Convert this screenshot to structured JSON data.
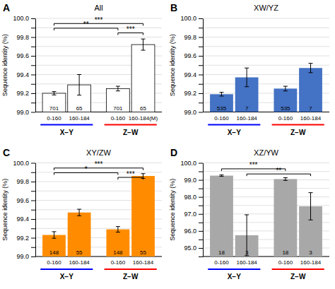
{
  "chart_data": [
    {
      "type": "bar",
      "title": "A",
      "subtitle": "All",
      "ylabel": "Sequence identity (%)",
      "categories": [
        "0-160",
        "160-184",
        "0-160",
        "160-184(M)"
      ],
      "values": [
        99.2,
        99.29,
        99.25,
        99.72
      ],
      "errors": [
        0.018,
        0.11,
        0.025,
        0.06
      ],
      "n": [
        701,
        65,
        701,
        65
      ],
      "color": "white",
      "groups": [
        {
          "name": "X−Y",
          "color": "blue"
        },
        {
          "name": "Z−W",
          "color": "red"
        }
      ],
      "significance": [
        {
          "between": [
            0,
            3
          ],
          "y": 99.945,
          "text": "***"
        },
        {
          "between": [
            0,
            2
          ],
          "y": 99.895,
          "text": "**"
        },
        {
          "between": [
            2,
            3
          ],
          "y": 99.845,
          "text": "***"
        }
      ],
      "ylim": [
        99.0,
        100.0
      ],
      "yticks": [
        {
          "value": 99.0,
          "label": "99.0"
        },
        {
          "value": 99.1,
          "label": null
        },
        {
          "value": 99.2,
          "label": "99.2"
        },
        {
          "value": 99.3,
          "label": null
        },
        {
          "value": 99.4,
          "label": "99.4"
        },
        {
          "value": 99.5,
          "label": null
        },
        {
          "value": 99.6,
          "label": "99.6"
        },
        {
          "value": 99.7,
          "label": null
        },
        {
          "value": 99.8,
          "label": "99.8"
        },
        {
          "value": 99.9,
          "label": null
        },
        {
          "value": 100.0,
          "label": "100.0"
        }
      ],
      "grid": true
    },
    {
      "type": "bar",
      "title": "B",
      "subtitle": "XW/YZ",
      "ylabel": "Sequence identity (%)",
      "categories": [
        "0-160",
        "160-184",
        "0-160",
        "160-184"
      ],
      "values": [
        99.19,
        99.37,
        99.25,
        99.47
      ],
      "errors": [
        0.02,
        0.1,
        0.025,
        0.05
      ],
      "n": [
        535,
        7,
        535,
        7
      ],
      "color": "#4472C4",
      "groups": [
        {
          "name": "X−Y",
          "color": "blue"
        },
        {
          "name": "Z−W",
          "color": "red"
        }
      ],
      "significance": [],
      "ylim": [
        99.0,
        100.0
      ],
      "yticks": [
        {
          "value": 99.0,
          "label": "99.0"
        },
        {
          "value": 99.1,
          "label": null
        },
        {
          "value": 99.2,
          "label": "99.2"
        },
        {
          "value": 99.3,
          "label": null
        },
        {
          "value": 99.4,
          "label": "99.4"
        },
        {
          "value": 99.5,
          "label": null
        },
        {
          "value": 99.6,
          "label": "99.6"
        },
        {
          "value": 99.7,
          "label": null
        },
        {
          "value": 99.8,
          "label": "99.8"
        },
        {
          "value": 99.9,
          "label": null
        },
        {
          "value": 100.0,
          "label": "100.0"
        }
      ],
      "grid": true
    },
    {
      "type": "bar",
      "title": "C",
      "subtitle": "XY/ZW",
      "ylabel": "Sequence identity (%)",
      "categories": [
        "0-160",
        "160-184",
        "0-160",
        "160-184"
      ],
      "values": [
        99.23,
        99.47,
        99.29,
        99.86
      ],
      "errors": [
        0.035,
        0.035,
        0.03,
        0.025
      ],
      "n": [
        148,
        55,
        148,
        55
      ],
      "color": "#FF8C00",
      "groups": [
        {
          "name": "X−Y",
          "color": "blue"
        },
        {
          "name": "Z−W",
          "color": "red"
        }
      ],
      "significance": [
        {
          "between": [
            0,
            3
          ],
          "y": 99.945,
          "text": "***"
        },
        {
          "between": [
            0,
            2
          ],
          "y": 99.895,
          "text": "*"
        },
        {
          "between": [
            2,
            3
          ],
          "y": 99.845,
          "text": "***"
        }
      ],
      "ylim": [
        99.0,
        100.0
      ],
      "yticks": [
        {
          "value": 99.0,
          "label": "99.0"
        },
        {
          "value": 99.1,
          "label": null
        },
        {
          "value": 99.2,
          "label": "99.2"
        },
        {
          "value": 99.3,
          "label": null
        },
        {
          "value": 99.4,
          "label": "99.4"
        },
        {
          "value": 99.5,
          "label": null
        },
        {
          "value": 99.6,
          "label": "99.6"
        },
        {
          "value": 99.7,
          "label": null
        },
        {
          "value": 99.8,
          "label": "99.8"
        },
        {
          "value": 99.9,
          "label": null
        },
        {
          "value": 100.0,
          "label": "100.0"
        }
      ],
      "grid": true
    },
    {
      "type": "bar",
      "title": "D",
      "subtitle": "XZ/YW",
      "ylabel": "Sequence identity (%)",
      "categories": [
        "0-160",
        "160-184",
        "0-160",
        "160-184"
      ],
      "values": [
        99.25,
        95.75,
        99.05,
        97.45
      ],
      "errors": [
        0.04,
        1.2,
        0.08,
        0.8
      ],
      "n": [
        18,
        3,
        18,
        3
      ],
      "color": "#A8A8A8",
      "groups": [
        {
          "name": "X−Y",
          "color": "blue"
        },
        {
          "name": "Z−W",
          "color": "red"
        }
      ],
      "significance": [
        {
          "between": [
            0,
            2
          ],
          "y": 99.65,
          "text": "***"
        },
        {
          "between": [
            1,
            3
          ],
          "y": 99.35,
          "text": "**"
        }
      ],
      "ylim": [
        94.5,
        100.0
      ],
      "yticks": [
        {
          "value": 94.5,
          "label": null
        },
        {
          "value": 95.0,
          "label": "95.0"
        },
        {
          "value": 95.5,
          "label": null
        },
        {
          "value": 96.0,
          "label": "96.0"
        },
        {
          "value": 96.5,
          "label": null
        },
        {
          "value": 97.0,
          "label": "97.0"
        },
        {
          "value": 97.5,
          "label": null
        },
        {
          "value": 98.0,
          "label": "98.0"
        },
        {
          "value": 98.5,
          "label": null
        },
        {
          "value": 99.0,
          "label": "99.0"
        },
        {
          "value": 99.5,
          "label": null
        },
        {
          "value": 100.0,
          "label": "100.0"
        }
      ],
      "grid": true
    }
  ]
}
